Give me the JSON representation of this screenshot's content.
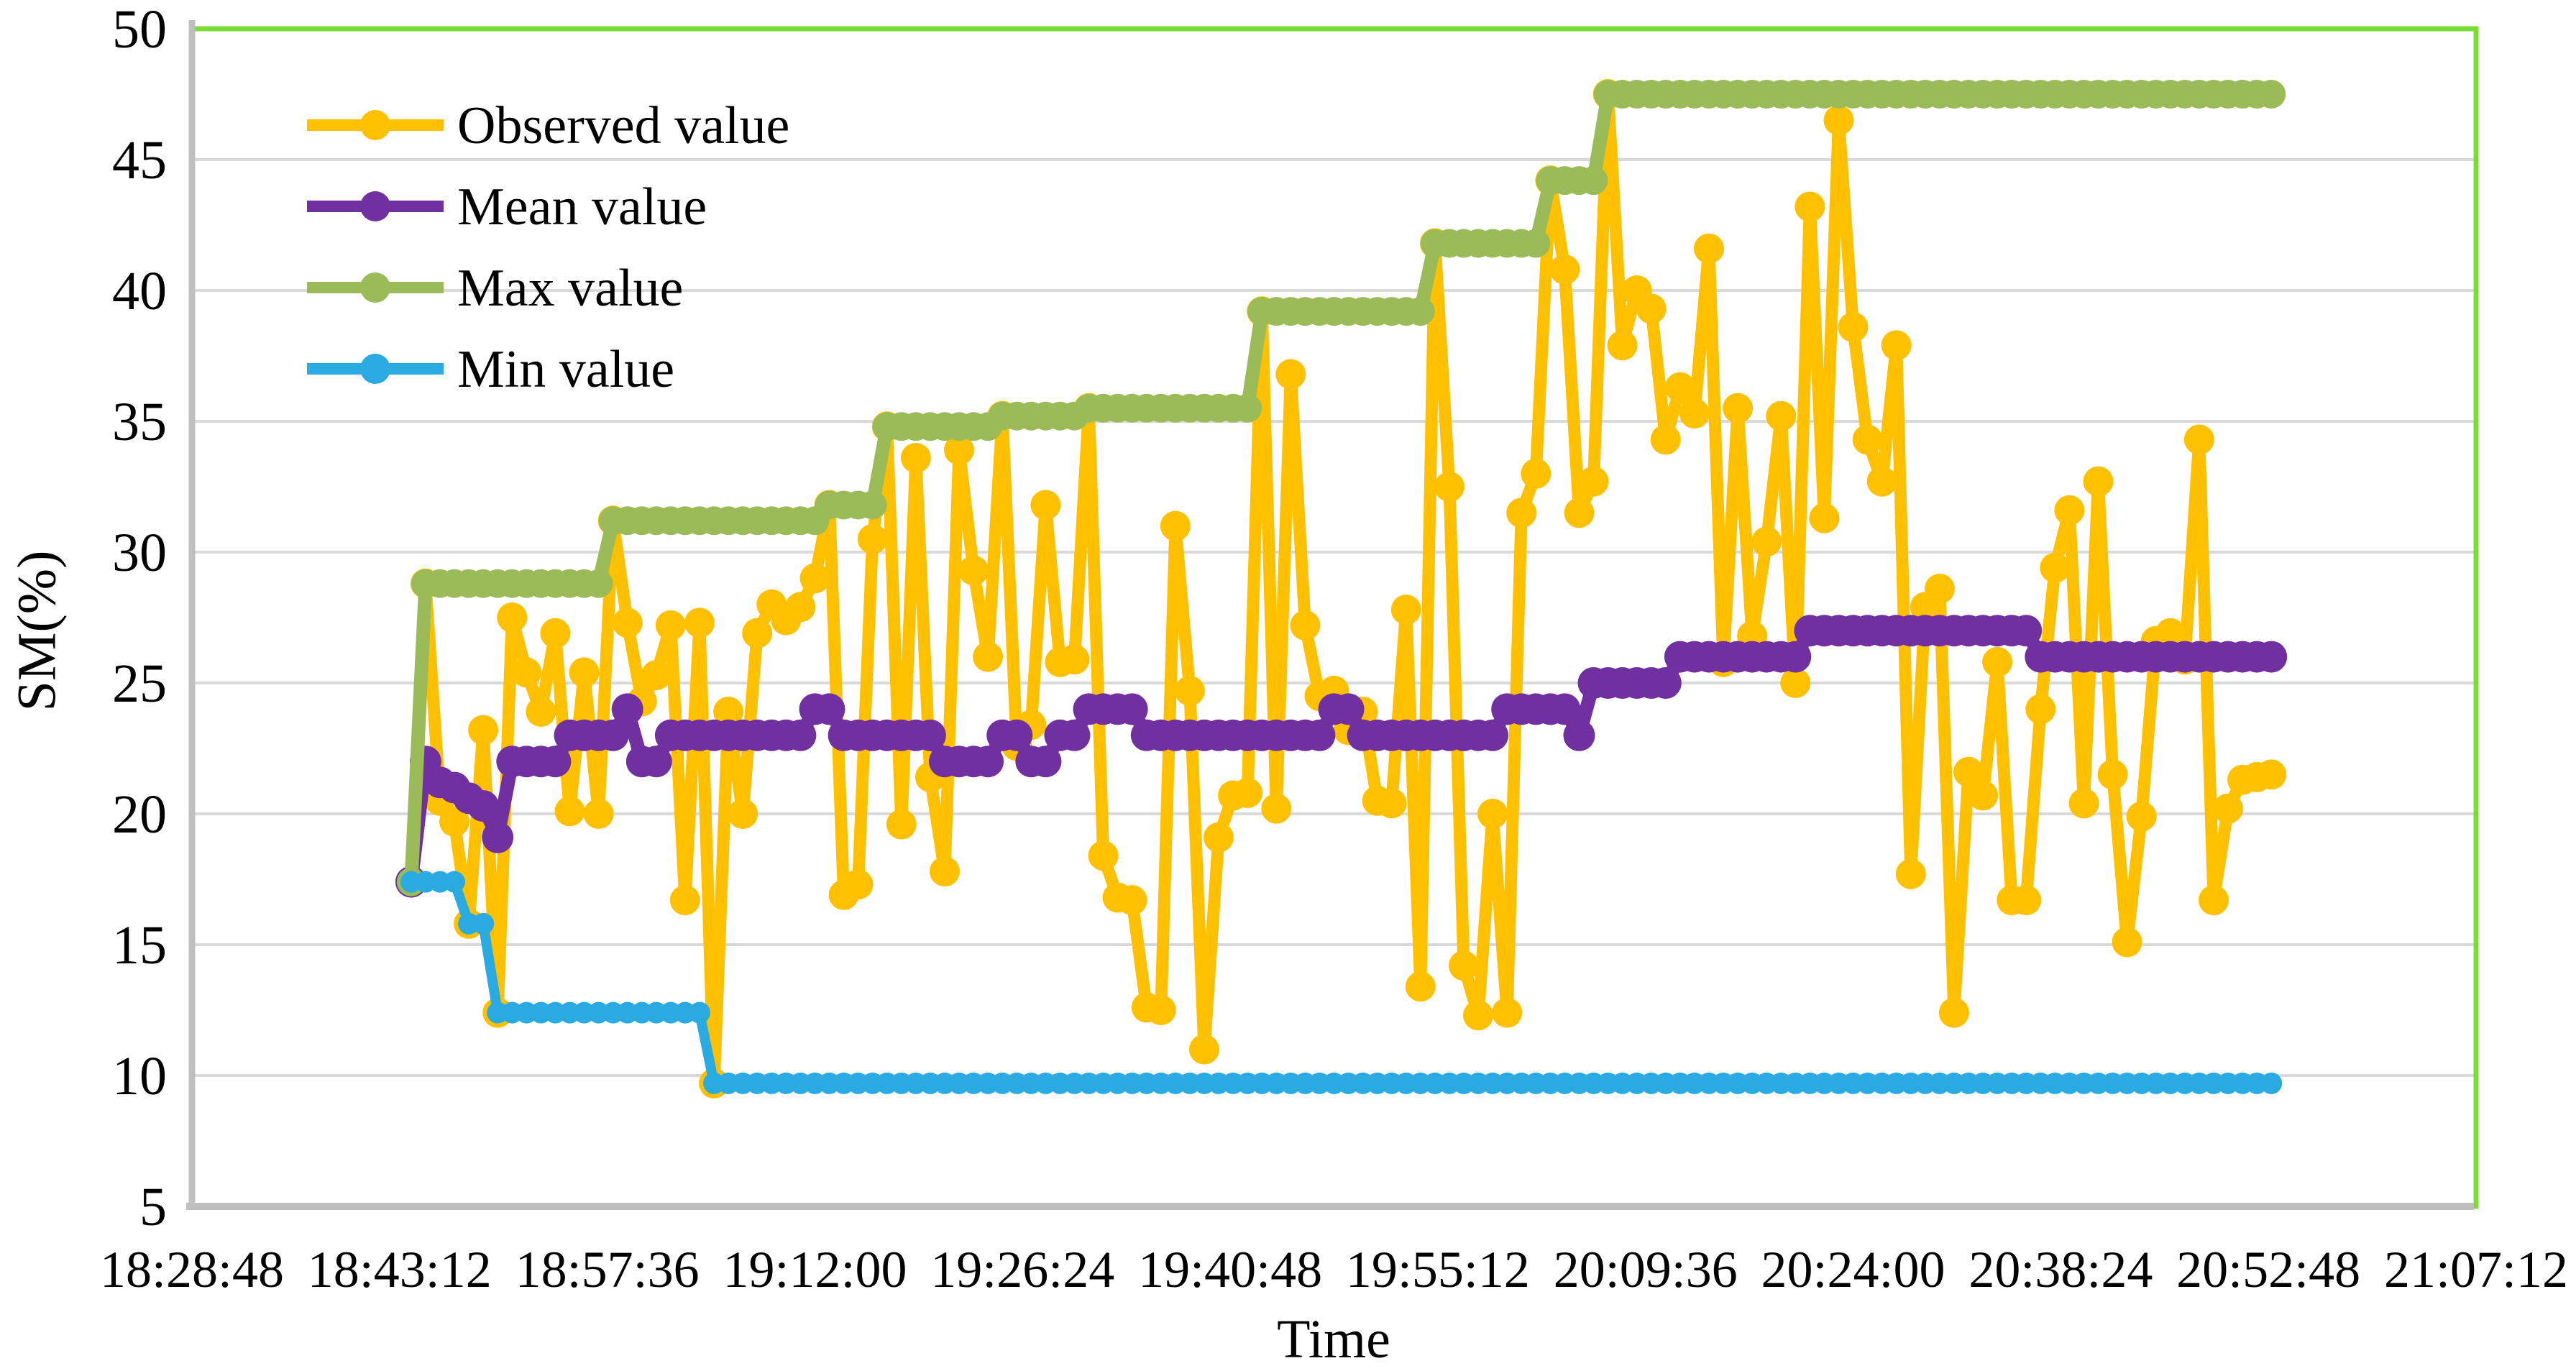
{
  "chart_data": {
    "type": "line",
    "title": "",
    "xlabel": "Time",
    "ylabel": "SM(%)",
    "ylim": [
      5,
      50
    ],
    "y_ticks": [
      5,
      10,
      15,
      20,
      25,
      30,
      35,
      40,
      45,
      50
    ],
    "x_tick_labels": [
      "18:28:48",
      "18:43:12",
      "18:57:36",
      "19:12:00",
      "19:26:24",
      "19:40:48",
      "19:55:12",
      "20:09:36",
      "20:24:00",
      "20:38:24",
      "20:52:48",
      "21:07:12"
    ],
    "x_axis": {
      "start": "18:28:48",
      "end": "21:07:12",
      "tick_interval_seconds": 864
    },
    "data_start_time": "18:44:00",
    "data_step_seconds": 60,
    "grid": true,
    "legend_position": "top-left-inside",
    "gridline_color": "#D9D9D9",
    "axis_line_color": "#BFBFBF",
    "plot_border_color": "#7BDC35",
    "series": [
      {
        "name": "Observed value",
        "color": "#FFC000",
        "marker": "circle",
        "values": [
          17.4,
          28.8,
          20.5,
          19.7,
          15.8,
          23.2,
          12.4,
          27.5,
          25.4,
          23.9,
          26.9,
          20.1,
          25.4,
          20.0,
          31.2,
          27.3,
          24.3,
          25.3,
          27.2,
          16.7,
          27.3,
          9.7,
          23.9,
          20.0,
          26.9,
          28.0,
          27.4,
          27.9,
          29.0,
          31.8,
          16.9,
          17.3,
          30.5,
          34.8,
          19.6,
          33.6,
          21.4,
          17.8,
          33.9,
          29.3,
          26.0,
          35.2,
          22.6,
          23.4,
          31.8,
          25.8,
          25.9,
          35.5,
          18.4,
          16.8,
          16.7,
          12.6,
          12.5,
          31.0,
          24.7,
          11.0,
          19.1,
          20.7,
          20.8,
          39.2,
          20.2,
          36.8,
          27.2,
          24.5,
          24.7,
          23.2,
          23.9,
          20.5,
          20.4,
          27.8,
          13.4,
          41.8,
          32.5,
          14.2,
          12.3,
          20.0,
          12.4,
          31.5,
          33.0,
          44.2,
          40.8,
          31.5,
          32.7,
          47.5,
          37.9,
          40.0,
          39.3,
          34.3,
          36.3,
          35.3,
          41.6,
          25.8,
          35.5,
          26.8,
          30.4,
          35.2,
          25.0,
          43.2,
          31.3,
          46.5,
          38.6,
          34.3,
          32.7,
          37.9,
          17.7,
          27.9,
          28.6,
          12.4,
          21.6,
          20.7,
          25.8,
          16.7,
          16.7,
          24.0,
          29.4,
          31.6,
          20.4,
          32.7,
          21.5,
          15.1,
          19.9,
          26.6,
          26.9,
          25.9,
          34.3,
          16.7,
          20.2,
          21.3,
          21.4,
          21.5
        ]
      },
      {
        "name": "Mean value",
        "color": "#7030A0",
        "marker": "circle",
        "values": [
          17.4,
          22,
          21.2,
          21,
          20.6,
          20.3,
          19.1,
          22,
          22,
          22,
          22,
          23,
          23,
          23,
          23,
          24,
          22,
          22,
          23,
          23,
          23,
          23,
          23,
          23,
          23,
          23,
          23,
          23,
          24,
          24,
          23,
          23,
          23,
          23,
          23,
          23,
          23,
          22,
          22,
          22,
          22,
          23,
          23,
          22,
          22,
          23,
          23,
          24,
          24,
          24,
          24,
          23,
          23,
          23,
          23,
          23,
          23,
          23,
          23,
          23,
          23,
          23,
          23,
          23,
          24,
          24,
          23,
          23,
          23,
          23,
          23,
          23,
          23,
          23,
          23,
          23,
          24,
          24,
          24,
          24,
          24,
          23,
          25,
          25,
          25,
          25,
          25,
          25,
          26,
          26,
          26,
          26,
          26,
          26,
          26,
          26,
          26,
          27,
          27,
          27,
          27,
          27,
          27,
          27,
          27,
          27,
          27,
          27,
          27,
          27,
          27,
          27,
          27,
          26,
          26,
          26,
          26,
          26,
          26,
          26,
          26,
          26,
          26,
          26,
          26,
          26,
          26,
          26,
          26,
          26
        ]
      },
      {
        "name": "Max value",
        "color": "#9BBB59",
        "marker": "circle",
        "values": [
          17.4,
          28.8,
          28.8,
          28.8,
          28.8,
          28.8,
          28.8,
          28.8,
          28.8,
          28.8,
          28.8,
          28.8,
          28.8,
          28.8,
          31.2,
          31.2,
          31.2,
          31.2,
          31.2,
          31.2,
          31.2,
          31.2,
          31.2,
          31.2,
          31.2,
          31.2,
          31.2,
          31.2,
          31.2,
          31.8,
          31.8,
          31.8,
          31.8,
          34.8,
          34.8,
          34.8,
          34.8,
          34.8,
          34.8,
          34.8,
          34.8,
          35.2,
          35.2,
          35.2,
          35.2,
          35.2,
          35.2,
          35.5,
          35.5,
          35.5,
          35.5,
          35.5,
          35.5,
          35.5,
          35.5,
          35.5,
          35.5,
          35.5,
          35.5,
          39.2,
          39.2,
          39.2,
          39.2,
          39.2,
          39.2,
          39.2,
          39.2,
          39.2,
          39.2,
          39.2,
          39.2,
          41.8,
          41.8,
          41.8,
          41.8,
          41.8,
          41.8,
          41.8,
          41.8,
          44.2,
          44.2,
          44.2,
          44.2,
          47.5,
          47.5,
          47.5,
          47.5,
          47.5,
          47.5,
          47.5,
          47.5,
          47.5,
          47.5,
          47.5,
          47.5,
          47.5,
          47.5,
          47.5,
          47.5,
          47.5,
          47.5,
          47.5,
          47.5,
          47.5,
          47.5,
          47.5,
          47.5,
          47.5,
          47.5,
          47.5,
          47.5,
          47.5,
          47.5,
          47.5,
          47.5,
          47.5,
          47.5,
          47.5,
          47.5,
          47.5,
          47.5,
          47.5,
          47.5,
          47.5,
          47.5,
          47.5,
          47.5,
          47.5,
          47.5,
          47.5
        ]
      },
      {
        "name": "Min value",
        "color": "#29ABE2",
        "marker": "circle",
        "values": [
          17.4,
          17.4,
          17.4,
          17.4,
          15.8,
          15.8,
          12.4,
          12.4,
          12.4,
          12.4,
          12.4,
          12.4,
          12.4,
          12.4,
          12.4,
          12.4,
          12.4,
          12.4,
          12.4,
          12.4,
          12.4,
          9.7,
          9.7,
          9.7,
          9.7,
          9.7,
          9.7,
          9.7,
          9.7,
          9.7,
          9.7,
          9.7,
          9.7,
          9.7,
          9.7,
          9.7,
          9.7,
          9.7,
          9.7,
          9.7,
          9.7,
          9.7,
          9.7,
          9.7,
          9.7,
          9.7,
          9.7,
          9.7,
          9.7,
          9.7,
          9.7,
          9.7,
          9.7,
          9.7,
          9.7,
          9.7,
          9.7,
          9.7,
          9.7,
          9.7,
          9.7,
          9.7,
          9.7,
          9.7,
          9.7,
          9.7,
          9.7,
          9.7,
          9.7,
          9.7,
          9.7,
          9.7,
          9.7,
          9.7,
          9.7,
          9.7,
          9.7,
          9.7,
          9.7,
          9.7,
          9.7,
          9.7,
          9.7,
          9.7,
          9.7,
          9.7,
          9.7,
          9.7,
          9.7,
          9.7,
          9.7,
          9.7,
          9.7,
          9.7,
          9.7,
          9.7,
          9.7,
          9.7,
          9.7,
          9.7,
          9.7,
          9.7,
          9.7,
          9.7,
          9.7,
          9.7,
          9.7,
          9.7,
          9.7,
          9.7,
          9.7,
          9.7,
          9.7,
          9.7,
          9.7,
          9.7,
          9.7,
          9.7,
          9.7,
          9.7,
          9.7,
          9.7,
          9.7,
          9.7,
          9.7,
          9.7,
          9.7,
          9.7,
          9.7,
          9.7
        ]
      }
    ]
  }
}
